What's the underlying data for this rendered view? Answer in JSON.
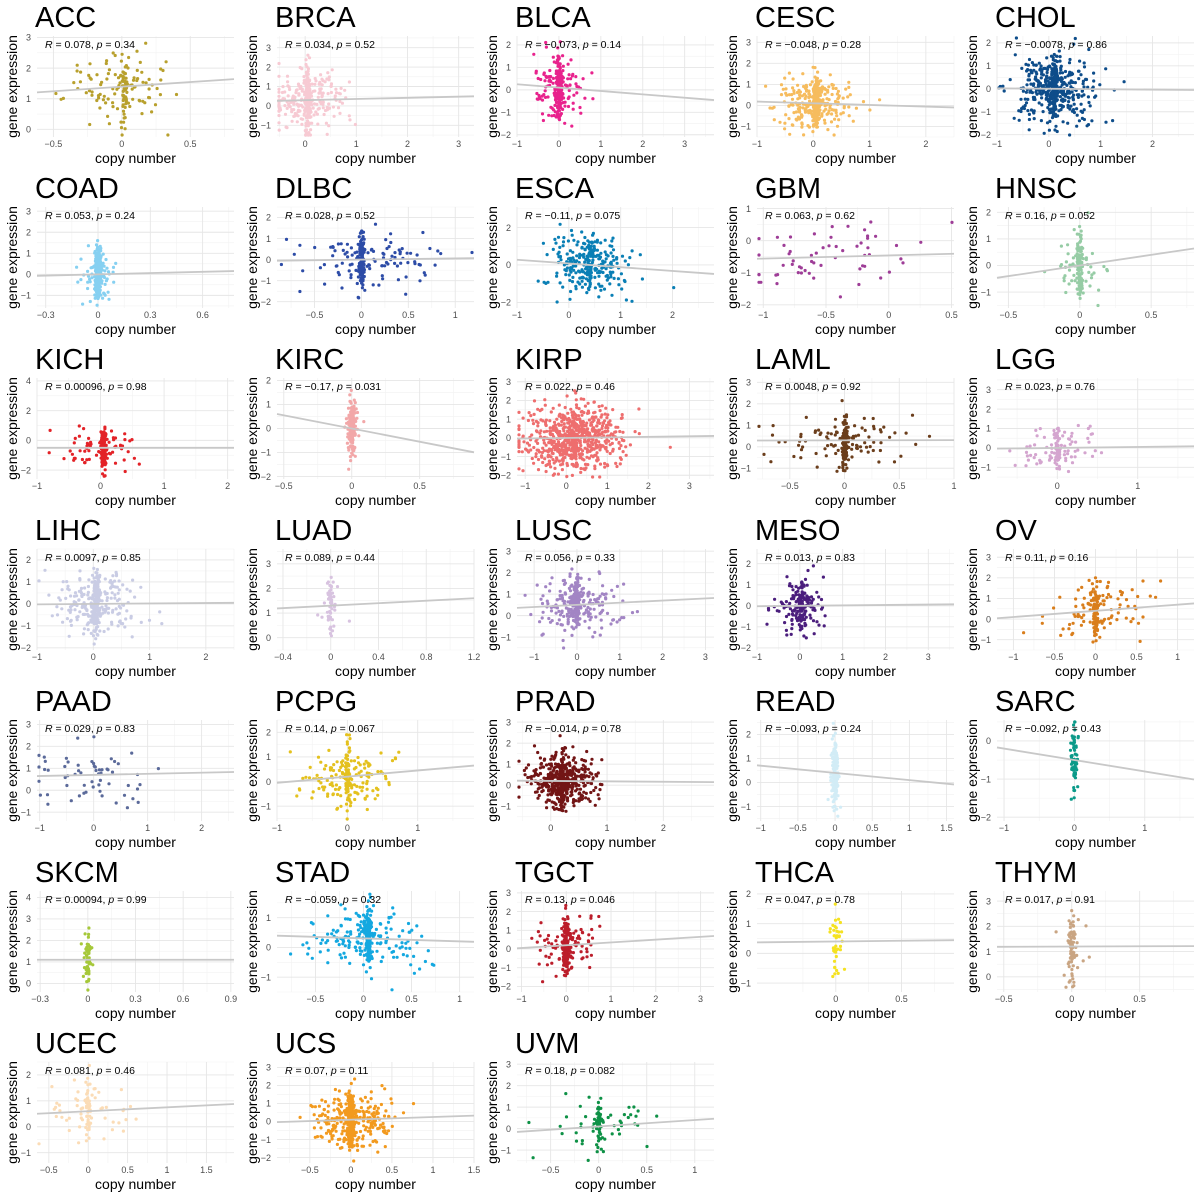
{
  "axis_labels": {
    "x": "copy number",
    "y": "gene expression"
  },
  "stat_prefix": {
    "r": "R",
    "p": "p"
  },
  "chart_data": [
    {
      "type": "scatter",
      "title": "ACC",
      "r": "0.078",
      "p": "0.34",
      "color": "#B8A02D",
      "xticks": [
        -0.5,
        0,
        0.5
      ],
      "yticks": [
        0,
        1,
        2,
        3
      ],
      "xlim": [
        -0.62,
        0.82
      ],
      "ylim": [
        -0.25,
        3.05
      ],
      "n": 150,
      "cx": 0.02,
      "sx": 0.2,
      "cy": 1.4,
      "sy": 0.6,
      "slope": 0.3,
      "spike": 0.35
    },
    {
      "type": "scatter",
      "title": "BRCA",
      "r": "0.034",
      "p": "0.52",
      "color": "#F7CAD3",
      "xticks": [
        0,
        1,
        2,
        3
      ],
      "yticks": [
        -1,
        0,
        1,
        2,
        3
      ],
      "xlim": [
        -0.55,
        3.3
      ],
      "ylim": [
        -1.6,
        3.6
      ],
      "n": 350,
      "cx": 0.05,
      "sx": 0.4,
      "cy": 0.3,
      "sy": 0.8,
      "slope": 0.06,
      "spike": 0.45
    },
    {
      "type": "scatter",
      "title": "BLCA",
      "r": "−0.073",
      "p": "0.14",
      "color": "#E8238D",
      "xticks": [
        -1,
        0,
        1,
        2,
        3
      ],
      "yticks": [
        -2,
        -1,
        0,
        1,
        2
      ],
      "xlim": [
        -1.0,
        3.7
      ],
      "ylim": [
        -2.1,
        2.4
      ],
      "n": 300,
      "cx": 0.0,
      "sx": 0.3,
      "cy": 0.1,
      "sy": 0.7,
      "slope": -0.15,
      "spike": 0.55
    },
    {
      "type": "scatter",
      "title": "CESC",
      "r": "−0.048",
      "p": "0.28",
      "color": "#F6BC5E",
      "xticks": [
        -1,
        0,
        1,
        2
      ],
      "yticks": [
        -1,
        0,
        1,
        2,
        3
      ],
      "xlim": [
        -1.0,
        2.5
      ],
      "ylim": [
        -1.5,
        3.3
      ],
      "n": 400,
      "cx": 0.05,
      "sx": 0.35,
      "cy": 0.1,
      "sy": 0.6,
      "slope": -0.08,
      "spike": 0.45
    },
    {
      "type": "scatter",
      "title": "CHOL",
      "r": "−0.0078",
      "p": "0.86",
      "color": "#0E4D8A",
      "xticks": [
        -1,
        0,
        1,
        2
      ],
      "yticks": [
        -2,
        -1,
        0,
        1,
        2
      ],
      "xlim": [
        -1.0,
        2.8
      ],
      "ylim": [
        -2.1,
        2.3
      ],
      "n": 500,
      "cx": 0.1,
      "sx": 0.4,
      "cy": 0.0,
      "sy": 0.7,
      "slope": -0.02,
      "spike": 0.25
    },
    {
      "type": "scatter",
      "title": "COAD",
      "r": "0.053",
      "p": "0.24",
      "color": "#86D0F1",
      "xticks": [
        -0.3,
        0,
        0.3,
        0.6
      ],
      "yticks": [
        -1,
        0,
        1,
        2,
        3
      ],
      "xlim": [
        -0.35,
        0.78
      ],
      "ylim": [
        -1.6,
        3.2
      ],
      "n": 300,
      "cx": 0.0,
      "sx": 0.05,
      "cy": 0.0,
      "sy": 0.6,
      "slope": 0.2,
      "spike": 0.75
    },
    {
      "type": "scatter",
      "title": "DLBC",
      "r": "0.028",
      "p": "0.52",
      "color": "#2D4CA7",
      "xticks": [
        -0.5,
        0,
        0.5,
        1
      ],
      "yticks": [
        -2,
        -1,
        0,
        1,
        2
      ],
      "xlim": [
        -0.9,
        1.2
      ],
      "ylim": [
        -2.3,
        2.5
      ],
      "n": 220,
      "cx": 0.0,
      "sx": 0.35,
      "cy": 0.0,
      "sy": 0.7,
      "slope": 0.06,
      "spike": 0.5
    },
    {
      "type": "scatter",
      "title": "ESCA",
      "r": "−0.11",
      "p": "0.075",
      "color": "#0A7FB5",
      "xticks": [
        -1,
        0,
        1,
        2
      ],
      "yticks": [
        -2,
        0,
        2
      ],
      "xlim": [
        -1.0,
        2.8
      ],
      "ylim": [
        -2.3,
        3.1
      ],
      "n": 280,
      "cx": 0.4,
      "sx": 0.4,
      "cy": 0.0,
      "sy": 0.8,
      "slope": -0.2,
      "spike": 0.2
    },
    {
      "type": "scatter",
      "title": "GBM",
      "r": "0.063",
      "p": "0.62",
      "color": "#9E3D97",
      "xticks": [
        -1,
        -0.5,
        0,
        0.5
      ],
      "yticks": [
        -2,
        -1,
        0,
        1
      ],
      "xlim": [
        -1.05,
        0.52
      ],
      "ylim": [
        -2.1,
        1.05
      ],
      "n": 60,
      "cx": -0.4,
      "sx": 0.35,
      "cy": -0.5,
      "sy": 0.6,
      "slope": 0.1,
      "spike": 0.0
    },
    {
      "type": "scatter",
      "title": "HNSC",
      "r": "0.16",
      "p": "0.052",
      "color": "#96CCA5",
      "xticks": [
        -0.5,
        0,
        0.5
      ],
      "yticks": [
        -1,
        0,
        1,
        2
      ],
      "xlim": [
        -0.58,
        0.8
      ],
      "ylim": [
        -1.6,
        2.2
      ],
      "n": 150,
      "cx": 0.0,
      "sx": 0.1,
      "cy": 0.0,
      "sy": 0.6,
      "slope": 0.8,
      "spike": 0.6
    },
    {
      "type": "scatter",
      "title": "KICH",
      "r": "0.00096",
      "p": "0.98",
      "color": "#E32227",
      "xticks": [
        -1,
        0,
        1,
        2
      ],
      "yticks": [
        -2,
        0,
        2,
        4
      ],
      "xlim": [
        -1.0,
        2.1
      ],
      "ylim": [
        -2.6,
        4.2
      ],
      "n": 200,
      "cx": 0.05,
      "sx": 0.3,
      "cy": -0.5,
      "sy": 0.6,
      "slope": 0.0,
      "spike": 0.6
    },
    {
      "type": "scatter",
      "title": "KIRC",
      "r": "−0.17",
      "p": "0.031",
      "color": "#F2A7A8",
      "xticks": [
        -0.5,
        0,
        0.5
      ],
      "yticks": [
        -2,
        -1,
        0,
        1,
        2
      ],
      "xlim": [
        -0.55,
        0.9
      ],
      "ylim": [
        -2.1,
        2.1
      ],
      "n": 200,
      "cx": 0.0,
      "sx": 0.03,
      "cy": 0.0,
      "sy": 0.5,
      "slope": -1.1,
      "spike": 0.85
    },
    {
      "type": "scatter",
      "title": "KIRP",
      "r": "0.022",
      "p": "0.46",
      "color": "#EE6E6E",
      "xticks": [
        -1,
        0,
        1,
        2,
        3
      ],
      "yticks": [
        -2,
        -1,
        0,
        1,
        2,
        3
      ],
      "xlim": [
        -1.2,
        3.6
      ],
      "ylim": [
        -2.2,
        3.2
      ],
      "n": 700,
      "cx": 0.2,
      "sx": 0.6,
      "cy": 0.0,
      "sy": 0.8,
      "slope": 0.03,
      "spike": 0.1
    },
    {
      "type": "scatter",
      "title": "LAML",
      "r": "0.0048",
      "p": "0.92",
      "color": "#6B3E1C",
      "xticks": [
        -0.5,
        0,
        0.5,
        1
      ],
      "yticks": [
        -1,
        0,
        1,
        2,
        3
      ],
      "xlim": [
        -0.8,
        1.0
      ],
      "ylim": [
        -1.5,
        3.2
      ],
      "n": 200,
      "cx": 0.0,
      "sx": 0.3,
      "cy": 0.3,
      "sy": 0.6,
      "slope": 0.01,
      "spike": 0.55
    },
    {
      "type": "scatter",
      "title": "LGG",
      "r": "0.023",
      "p": "0.76",
      "color": "#D4A5CF",
      "xticks": [
        0,
        1
      ],
      "yticks": [
        -1,
        0,
        1,
        2,
        3
      ],
      "xlim": [
        -0.75,
        1.7
      ],
      "ylim": [
        -1.6,
        3.6
      ],
      "n": 120,
      "cx": 0.0,
      "sx": 0.3,
      "cy": 0.0,
      "sy": 0.6,
      "slope": 0.05,
      "spike": 0.4
    },
    {
      "type": "scatter",
      "title": "LIHC",
      "r": "0.0097",
      "p": "0.85",
      "color": "#C9CCE4",
      "xticks": [
        -1,
        0,
        1,
        2
      ],
      "yticks": [
        -2,
        -1,
        0,
        1,
        2
      ],
      "xlim": [
        -1.0,
        2.5
      ],
      "ylim": [
        -2.1,
        2.5
      ],
      "n": 350,
      "cx": 0.05,
      "sx": 0.4,
      "cy": 0.0,
      "sy": 0.7,
      "slope": 0.02,
      "spike": 0.4
    },
    {
      "type": "scatter",
      "title": "LUAD",
      "r": "0.089",
      "p": "0.44",
      "color": "#D8C3E0",
      "xticks": [
        -0.4,
        0,
        0.4,
        0.8,
        1.2
      ],
      "yticks": [
        0,
        1,
        2,
        3
      ],
      "xlim": [
        -0.45,
        1.2
      ],
      "ylim": [
        -0.5,
        3.6
      ],
      "n": 60,
      "cx": 0.0,
      "sx": 0.05,
      "cy": 1.3,
      "sy": 0.6,
      "slope": 0.25,
      "spike": 0.7
    },
    {
      "type": "scatter",
      "title": "LUSC",
      "r": "0.056",
      "p": "0.33",
      "color": "#A285C4",
      "xticks": [
        -1,
        0,
        1,
        2,
        3
      ],
      "yticks": [
        -1,
        0,
        1,
        2,
        3
      ],
      "xlim": [
        -1.4,
        3.2
      ],
      "ylim": [
        -1.6,
        3.1
      ],
      "n": 300,
      "cx": 0.0,
      "sx": 0.5,
      "cy": 0.5,
      "sy": 0.7,
      "slope": 0.1,
      "spike": 0.3
    },
    {
      "type": "scatter",
      "title": "MESO",
      "r": "0.013",
      "p": "0.83",
      "color": "#4B1E7D",
      "xticks": [
        -1,
        0,
        1,
        2,
        3
      ],
      "yticks": [
        -2,
        -1,
        0,
        1,
        2
      ],
      "xlim": [
        -1.0,
        3.6
      ],
      "ylim": [
        -2.1,
        2.7
      ],
      "n": 200,
      "cx": 0.05,
      "sx": 0.3,
      "cy": 0.0,
      "sy": 0.6,
      "slope": 0.02,
      "spike": 0.45
    },
    {
      "type": "scatter",
      "title": "OV",
      "r": "0.11",
      "p": "0.16",
      "color": "#D97E1C",
      "xticks": [
        -1,
        -0.5,
        0,
        0.5,
        1
      ],
      "yticks": [
        -1,
        0,
        1,
        2,
        3
      ],
      "xlim": [
        -1.2,
        1.2
      ],
      "ylim": [
        -1.5,
        3.4
      ],
      "n": 180,
      "cx": 0.0,
      "sx": 0.3,
      "cy": 0.4,
      "sy": 0.7,
      "slope": 0.3,
      "spike": 0.5
    },
    {
      "type": "scatter",
      "title": "PAAD",
      "r": "0.029",
      "p": "0.83",
      "color": "#5B6A9A",
      "xticks": [
        -1,
        0,
        1,
        2
      ],
      "yticks": [
        -1,
        0,
        1,
        2,
        3
      ],
      "xlim": [
        -1.05,
        2.6
      ],
      "ylim": [
        -1.4,
        3.2
      ],
      "n": 60,
      "cx": 0.0,
      "sx": 0.5,
      "cy": 0.7,
      "sy": 0.7,
      "slope": 0.05,
      "spike": 0.0
    },
    {
      "type": "scatter",
      "title": "PCPG",
      "r": "0.14",
      "p": "0.067",
      "color": "#E4C11E",
      "xticks": [
        -1,
        0,
        1
      ],
      "yticks": [
        -1,
        0,
        1,
        2
      ],
      "xlim": [
        -1.0,
        1.8
      ],
      "ylim": [
        -1.6,
        2.5
      ],
      "n": 200,
      "cx": 0.0,
      "sx": 0.35,
      "cy": 0.2,
      "sy": 0.6,
      "slope": 0.25,
      "spike": 0.3
    },
    {
      "type": "scatter",
      "title": "PRAD",
      "r": "−0.014",
      "p": "0.78",
      "color": "#721515",
      "xticks": [
        0,
        1,
        2
      ],
      "yticks": [
        -1,
        0,
        1,
        2,
        3
      ],
      "xlim": [
        -0.6,
        2.9
      ],
      "ylim": [
        -1.7,
        3.1
      ],
      "n": 500,
      "cx": 0.2,
      "sx": 0.3,
      "cy": 0.2,
      "sy": 0.6,
      "slope": -0.02,
      "spike": 0.25
    },
    {
      "type": "scatter",
      "title": "READ",
      "r": "−0.093",
      "p": "0.24",
      "color": "#D2ECF6",
      "xticks": [
        -1,
        -0.5,
        0,
        0.5,
        1,
        1.5
      ],
      "yticks": [
        -1,
        0,
        1,
        2
      ],
      "xlim": [
        -1.05,
        1.6
      ],
      "ylim": [
        -1.6,
        2.6
      ],
      "n": 150,
      "cx": 0.0,
      "sx": 0.03,
      "cy": 0.4,
      "sy": 0.7,
      "slope": -0.3,
      "spike": 0.85
    },
    {
      "type": "scatter",
      "title": "SARC",
      "r": "−0.092",
      "p": "0.43",
      "color": "#0B9A89",
      "xticks": [
        -1,
        0,
        1
      ],
      "yticks": [
        -2,
        -1,
        0
      ],
      "xlim": [
        -1.1,
        1.7
      ],
      "ylim": [
        -2.1,
        0.55
      ],
      "n": 70,
      "cx": 0.0,
      "sx": 0.05,
      "cy": -0.5,
      "sy": 0.5,
      "slope": -0.3,
      "spike": 0.85
    },
    {
      "type": "scatter",
      "title": "SKCM",
      "r": "0.00094",
      "p": "0.99",
      "color": "#A6C83A",
      "xticks": [
        -0.3,
        0,
        0.3,
        0.6,
        0.9
      ],
      "yticks": [
        0,
        1,
        2,
        3,
        4
      ],
      "xlim": [
        -0.32,
        0.92
      ],
      "ylim": [
        -0.4,
        4.3
      ],
      "n": 60,
      "cx": 0.0,
      "sx": 0.02,
      "cy": 1.1,
      "sy": 0.5,
      "slope": 0.0,
      "spike": 0.85
    },
    {
      "type": "scatter",
      "title": "STAD",
      "r": "−0.059",
      "p": "0.32",
      "color": "#14A8E0",
      "xticks": [
        -0.5,
        0,
        0.5,
        1
      ],
      "yticks": [
        -1,
        0,
        1
      ],
      "xlim": [
        -0.9,
        1.15
      ],
      "ylim": [
        -1.5,
        1.9
      ],
      "n": 300,
      "cx": 0.05,
      "sx": 0.3,
      "cy": 0.3,
      "sy": 0.5,
      "slope": -0.1,
      "spike": 0.5
    },
    {
      "type": "scatter",
      "title": "TGCT",
      "r": "0.13",
      "p": "0.046",
      "color": "#BC1E2B",
      "xticks": [
        -1,
        0,
        1,
        2,
        3
      ],
      "yticks": [
        -2,
        -1,
        0,
        1,
        2,
        3
      ],
      "xlim": [
        -1.1,
        3.3
      ],
      "ylim": [
        -2.3,
        3.1
      ],
      "n": 250,
      "cx": 0.0,
      "sx": 0.35,
      "cy": 0.2,
      "sy": 0.7,
      "slope": 0.15,
      "spike": 0.55
    },
    {
      "type": "scatter",
      "title": "THCA",
      "r": "0.047",
      "p": "0.78",
      "color": "#F5E221",
      "xticks": [
        0,
        0.5
      ],
      "yticks": [
        -1,
        0,
        1,
        2
      ],
      "xlim": [
        -0.6,
        0.9
      ],
      "ylim": [
        -1.3,
        2.1
      ],
      "n": 40,
      "cx": 0.0,
      "sx": 0.05,
      "cy": 0.4,
      "sy": 0.6,
      "slope": 0.05,
      "spike": 0.75
    },
    {
      "type": "scatter",
      "title": "THYM",
      "r": "0.017",
      "p": "0.91",
      "color": "#C9A583",
      "xticks": [
        -0.5,
        0,
        0.5
      ],
      "yticks": [
        0,
        1,
        2,
        3
      ],
      "xlim": [
        -0.55,
        0.9
      ],
      "ylim": [
        -0.6,
        3.4
      ],
      "n": 90,
      "cx": 0.0,
      "sx": 0.05,
      "cy": 1.2,
      "sy": 0.7,
      "slope": 0.02,
      "spike": 0.85
    },
    {
      "type": "scatter",
      "title": "UCEC",
      "r": "0.081",
      "p": "0.46",
      "color": "#FBDCB6",
      "xticks": [
        -0.5,
        0,
        0.5,
        1,
        1.5
      ],
      "yticks": [
        -1,
        0,
        1,
        2
      ],
      "xlim": [
        -0.65,
        1.85
      ],
      "ylim": [
        -1.4,
        2.5
      ],
      "n": 100,
      "cx": 0.0,
      "sx": 0.3,
      "cy": 0.6,
      "sy": 0.6,
      "slope": 0.15,
      "spike": 0.55
    },
    {
      "type": "scatter",
      "title": "UCS",
      "r": "0.07",
      "p": "0.11",
      "color": "#F29A1F",
      "xticks": [
        -0.5,
        0,
        0.5,
        1,
        1.5
      ],
      "yticks": [
        -2,
        -1,
        0,
        1,
        2,
        3
      ],
      "xlim": [
        -0.9,
        1.5
      ],
      "ylim": [
        -2.3,
        3.3
      ],
      "n": 500,
      "cx": 0.0,
      "sx": 0.25,
      "cy": 0.1,
      "sy": 0.7,
      "slope": 0.15,
      "spike": 0.5
    },
    {
      "type": "scatter",
      "title": "UVM",
      "r": "0.18",
      "p": "0.082",
      "color": "#0E9146",
      "xticks": [
        -0.5,
        0,
        0.5,
        1
      ],
      "yticks": [
        -1,
        0,
        1,
        2,
        3
      ],
      "xlim": [
        -0.85,
        1.2
      ],
      "ylim": [
        -1.6,
        3.1
      ],
      "n": 90,
      "cx": 0.0,
      "sx": 0.3,
      "cy": 0.1,
      "sy": 0.6,
      "slope": 0.3,
      "spike": 0.4
    }
  ]
}
